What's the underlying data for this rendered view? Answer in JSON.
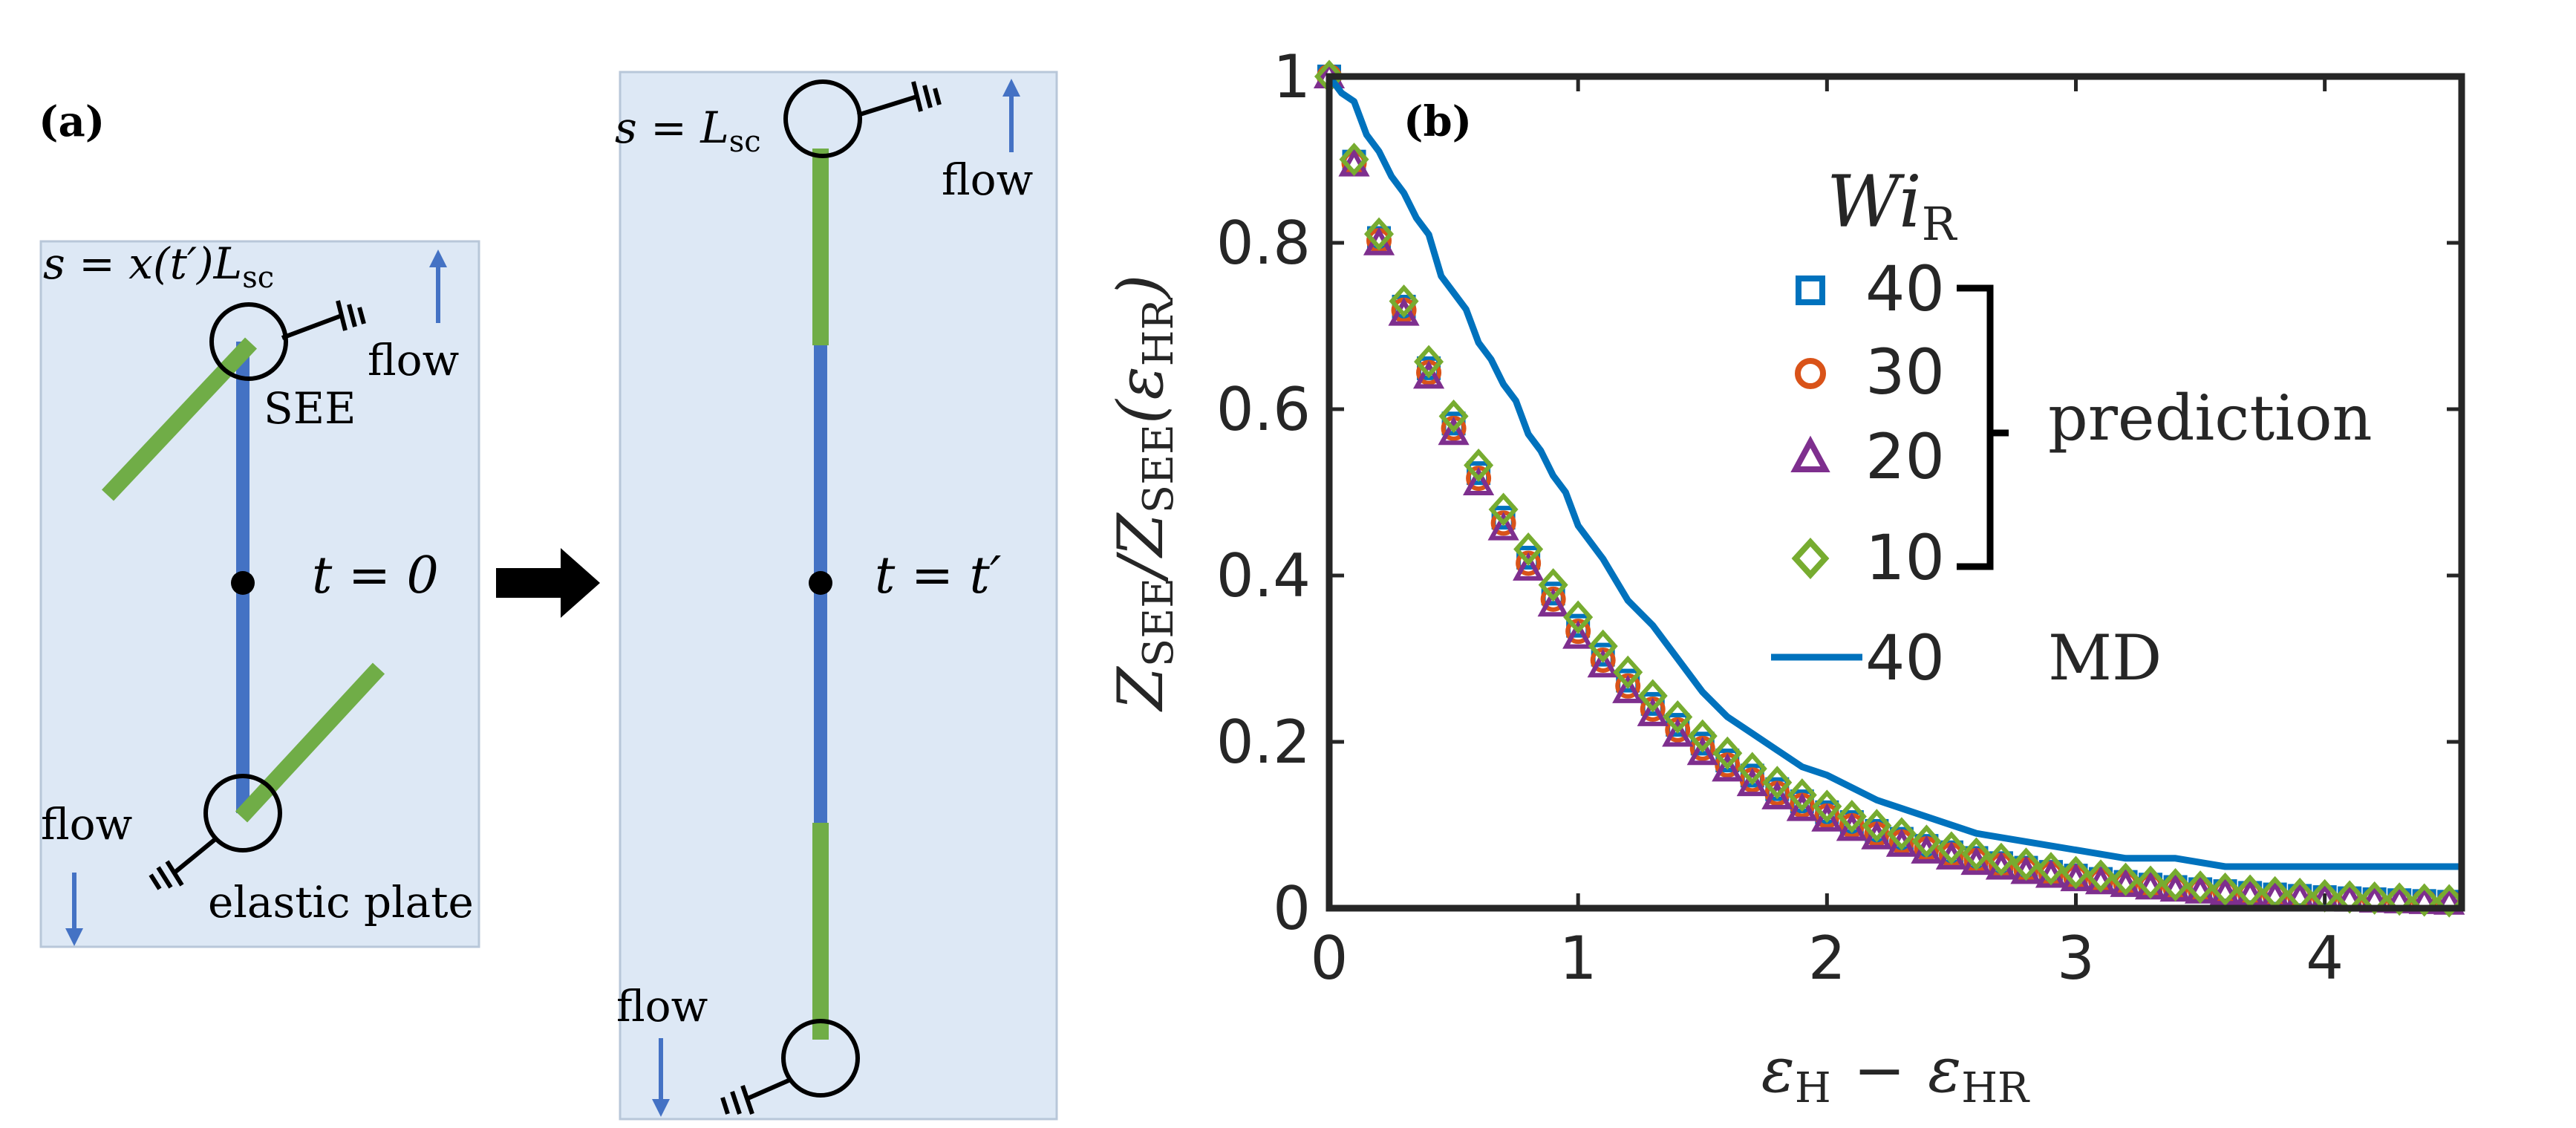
{
  "panel_a": {
    "label": "(a)",
    "left": {
      "pos_label": "s = x(t′)L",
      "pos_sub": "sc",
      "flow_top": "flow",
      "see_label": "SEE",
      "time_label": "t = 0",
      "flow_bottom": "flow",
      "plate_label": "elastic plate"
    },
    "right": {
      "pos_label": "s = L",
      "pos_sub": "sc",
      "flow_top": "flow",
      "time_label": "t = t′",
      "flow_bottom": "flow"
    },
    "colors": {
      "panel_bg": "#dde8f5",
      "chain_blue": "#4472c4",
      "chain_green": "#70ad47",
      "flow_arrow": "#4472c4"
    }
  },
  "chart_data": {
    "type": "scatter",
    "panel_label": "(b)",
    "xlabel_tokens": [
      "ε",
      "H",
      "−",
      "ε",
      "HR"
    ],
    "ylabel_tokens": [
      "Z",
      "SEE",
      "/Z",
      "SEE",
      "(ε",
      "HR",
      ")"
    ],
    "xlim": [
      0,
      4.55
    ],
    "ylim": [
      0,
      1.0
    ],
    "xticks": [
      0,
      1,
      2,
      3,
      4
    ],
    "yticks": [
      0,
      0.2,
      0.4,
      0.6,
      0.8,
      1
    ],
    "xtick_labels": [
      "0",
      "1",
      "2",
      "3",
      "4"
    ],
    "ytick_labels": [
      "0",
      "0.2",
      "0.4",
      "0.6",
      "0.8",
      "1"
    ],
    "legend": {
      "title": "Wi",
      "title_sub": "R",
      "entries": [
        "40",
        "30",
        "20",
        "10"
      ],
      "bracket_label": "prediction",
      "md_entry": "40",
      "md_label": "MD"
    },
    "prediction_series": [
      {
        "name": "40",
        "marker": "square",
        "color": "#0072bd",
        "decay": 1.08
      },
      {
        "name": "30",
        "marker": "circle",
        "color": "#d95319",
        "decay": 1.1
      },
      {
        "name": "20",
        "marker": "triangle",
        "color": "#7e2f8e",
        "decay": 1.12
      },
      {
        "name": "10",
        "marker": "diamond",
        "color": "#77ac30",
        "decay": 1.05
      }
    ],
    "md_series": {
      "name": "40",
      "color": "#0072bd",
      "x": [
        0,
        0.05,
        0.1,
        0.15,
        0.2,
        0.25,
        0.3,
        0.35,
        0.4,
        0.45,
        0.5,
        0.55,
        0.6,
        0.65,
        0.7,
        0.75,
        0.8,
        0.85,
        0.9,
        0.95,
        1.0,
        1.1,
        1.2,
        1.3,
        1.4,
        1.5,
        1.6,
        1.7,
        1.8,
        1.9,
        2.0,
        2.2,
        2.4,
        2.6,
        2.8,
        3.0,
        3.2,
        3.4,
        3.6,
        3.8,
        4.0,
        4.2,
        4.4,
        4.55
      ],
      "y": [
        1.0,
        0.98,
        0.97,
        0.93,
        0.91,
        0.88,
        0.86,
        0.83,
        0.81,
        0.76,
        0.74,
        0.72,
        0.68,
        0.66,
        0.63,
        0.61,
        0.57,
        0.55,
        0.52,
        0.5,
        0.46,
        0.42,
        0.37,
        0.34,
        0.3,
        0.26,
        0.23,
        0.21,
        0.19,
        0.17,
        0.16,
        0.13,
        0.11,
        0.09,
        0.08,
        0.07,
        0.06,
        0.06,
        0.05,
        0.05,
        0.05,
        0.05,
        0.05,
        0.05
      ]
    }
  }
}
